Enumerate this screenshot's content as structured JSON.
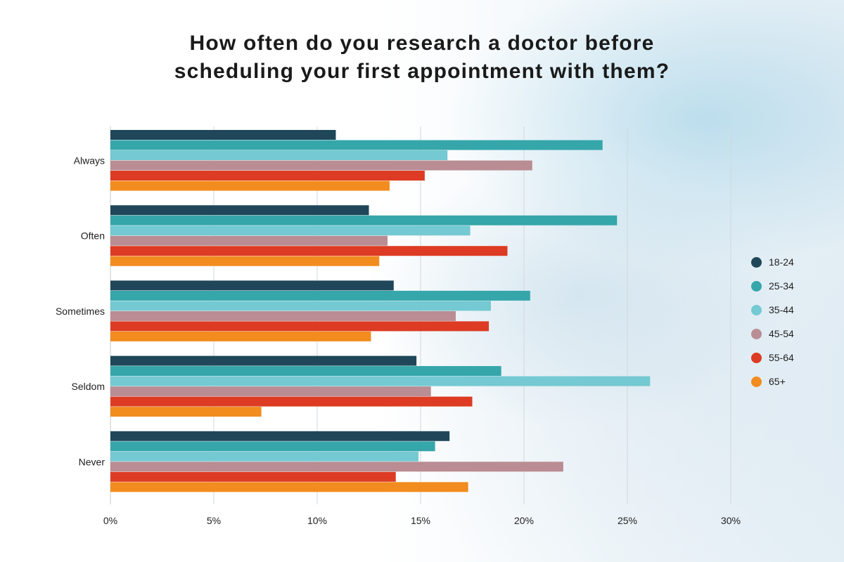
{
  "chart_data": {
    "type": "bar",
    "orientation": "horizontal",
    "title_line1": "How often do you research a doctor before",
    "title_line2": "scheduling your first appointment with them?",
    "categories": [
      "Always",
      "Often",
      "Sometimes",
      "Seldom",
      "Never"
    ],
    "series": [
      {
        "name": "18-24",
        "color": "#1f4759",
        "values": [
          10.9,
          12.5,
          13.7,
          14.8,
          16.4
        ]
      },
      {
        "name": "25-34",
        "color": "#35a6aa",
        "values": [
          23.8,
          24.5,
          20.3,
          18.9,
          15.7
        ]
      },
      {
        "name": "35-44",
        "color": "#74c9d2",
        "values": [
          16.3,
          17.4,
          18.4,
          26.1,
          14.9
        ]
      },
      {
        "name": "45-54",
        "color": "#b98d93",
        "values": [
          20.4,
          13.4,
          16.7,
          15.5,
          21.9
        ]
      },
      {
        "name": "55-64",
        "color": "#dd3b23",
        "values": [
          15.2,
          19.2,
          18.3,
          17.5,
          13.8
        ]
      },
      {
        "name": "65+",
        "color": "#f28c1e",
        "values": [
          13.5,
          13.0,
          12.6,
          7.3,
          17.3
        ]
      }
    ],
    "xlim": [
      0,
      30
    ],
    "xticks": [
      "0%",
      "5%",
      "10%",
      "15%",
      "20%",
      "25%",
      "30%"
    ],
    "grid": true,
    "legend_position": "right"
  }
}
